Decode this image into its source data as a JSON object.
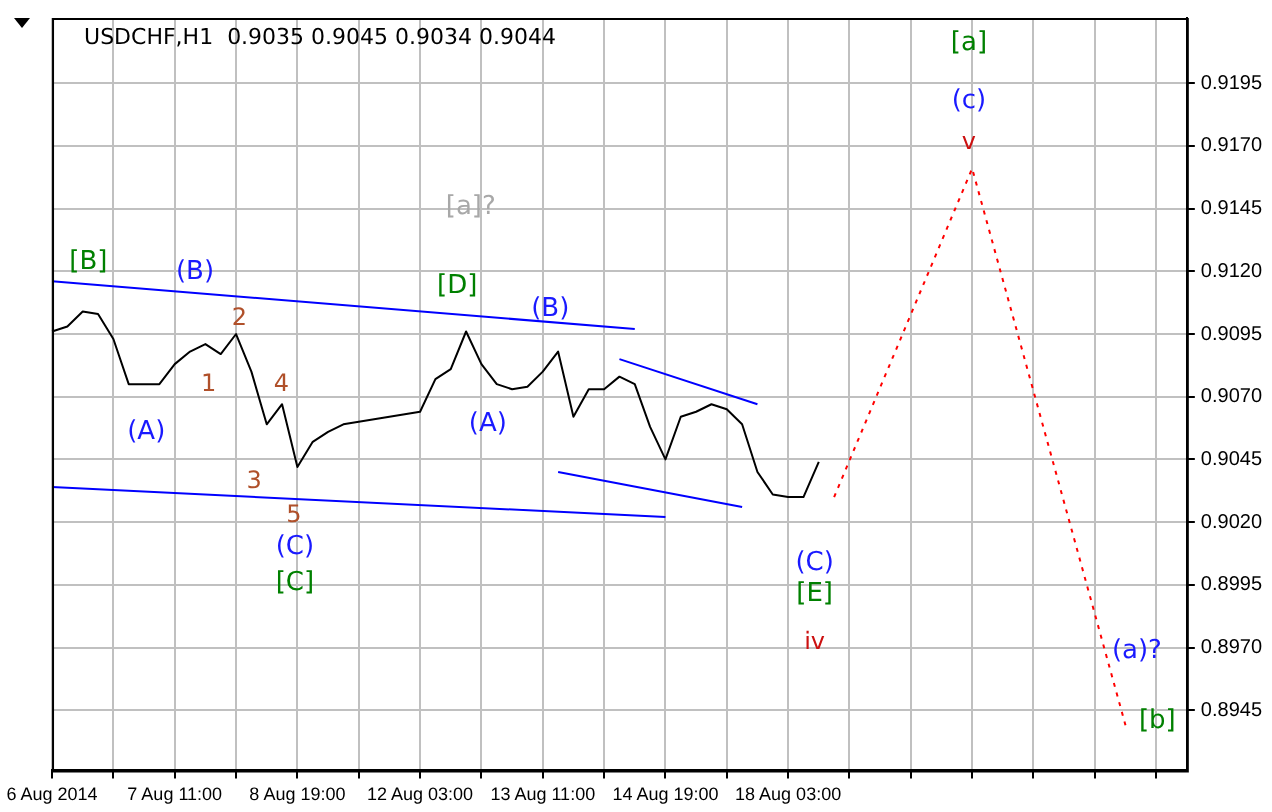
{
  "chart_data": {
    "type": "line",
    "title": "USDCHF,H1  0.9035 0.9045 0.9034 0.9044",
    "categories": [
      "6 Aug 2014",
      null,
      null,
      null,
      null,
      null,
      null,
      null,
      "7 Aug 11:00",
      null,
      null,
      null,
      null,
      null,
      null,
      null,
      "8 Aug 19:00",
      null,
      null,
      null,
      null,
      null,
      null,
      null,
      "12 Aug 03:00",
      null,
      null,
      null,
      null,
      null,
      null,
      null,
      "13 Aug 11:00",
      null,
      null,
      null,
      null,
      null,
      null,
      null,
      "14 Aug 19:00",
      null,
      null,
      null,
      null,
      null,
      null,
      null,
      "18 Aug 03:00",
      null,
      null,
      null,
      null,
      null,
      null,
      null,
      null,
      null,
      null,
      null,
      null,
      null,
      null,
      null,
      null,
      null,
      null,
      null,
      null,
      null,
      null,
      null,
      null,
      null,
      null
    ],
    "ylim": [
      0.8921,
      0.9221
    ],
    "yticks": [
      0.8945,
      {
        "value": 0.897,
        "label": "0.8970"
      },
      0.8995,
      {
        "value": 0.902,
        "label": "0.9020"
      },
      0.9045,
      {
        "value": 0.907,
        "label": "0.9070"
      },
      0.9095,
      {
        "value": 0.912,
        "label": "0.9120"
      },
      0.9145,
      {
        "value": 0.917,
        "label": "0.9170"
      },
      0.9195
    ],
    "grid": true,
    "marker": "none",
    "series": [
      {
        "color": "#000000",
        "line_style": "solid",
        "values": [
          0.9096,
          0.9098,
          0.9104,
          0.9103,
          0.9093,
          0.9075,
          0.9075,
          0.9075,
          0.9083,
          0.9088,
          0.9091,
          0.9087,
          0.9095,
          0.908,
          0.9059,
          0.9067,
          0.9042,
          0.9052,
          0.9056,
          0.9059,
          0.906,
          0.9061,
          0.9062,
          0.9063,
          0.9064,
          0.9077,
          0.9081,
          0.9096,
          0.9083,
          0.9075,
          0.9073,
          0.9074,
          0.908,
          0.9088,
          0.9062,
          0.9073,
          0.9073,
          0.9078,
          0.9075,
          0.9058,
          0.9045,
          0.9062,
          0.9064,
          0.9067,
          0.9065,
          0.9059,
          0.904,
          0.9031,
          0.903,
          0.903,
          0.9044,
          null,
          null,
          null,
          null,
          null,
          null,
          null,
          null,
          null,
          null,
          null,
          null,
          null,
          null,
          null,
          null,
          null,
          null,
          null,
          null,
          null,
          null,
          null,
          null
        ]
      },
      {
        "color": "#0000ff",
        "line_style": "solid",
        "values": [
          0.9116,
          null,
          null,
          null,
          null,
          null,
          null,
          null,
          null,
          null,
          null,
          null,
          null,
          null,
          null,
          null,
          null,
          null,
          null,
          null,
          null,
          null,
          null,
          null,
          null,
          null,
          null,
          null,
          null,
          null,
          null,
          null,
          null,
          null,
          null,
          null,
          null,
          null,
          0.9097,
          null,
          null,
          null,
          null,
          null,
          null,
          null,
          null,
          null,
          null,
          null,
          null,
          null,
          null,
          null,
          null,
          null,
          null,
          null,
          null,
          null,
          null,
          null,
          null,
          null,
          null,
          null,
          null,
          null,
          null,
          null,
          null,
          null,
          null,
          null,
          null
        ]
      },
      {
        "color": "#0000ff",
        "line_style": "solid",
        "values": [
          0.9034,
          null,
          null,
          null,
          null,
          null,
          null,
          null,
          null,
          null,
          null,
          null,
          null,
          null,
          null,
          null,
          null,
          null,
          null,
          null,
          null,
          null,
          null,
          null,
          null,
          null,
          null,
          null,
          null,
          null,
          null,
          null,
          null,
          null,
          null,
          null,
          null,
          null,
          null,
          null,
          0.9022,
          null,
          null,
          null,
          null,
          null,
          null,
          null,
          null,
          null,
          null,
          null,
          null,
          null,
          null,
          null,
          null,
          null,
          null,
          null,
          null,
          null,
          null,
          null,
          null,
          null,
          null,
          null,
          null,
          null,
          null,
          null,
          null,
          null,
          null
        ]
      },
      {
        "color": "#0000ff",
        "line_style": "solid",
        "values": [
          null,
          null,
          null,
          null,
          null,
          null,
          null,
          null,
          null,
          null,
          null,
          null,
          null,
          null,
          null,
          null,
          null,
          null,
          null,
          null,
          null,
          null,
          null,
          null,
          null,
          null,
          null,
          null,
          null,
          null,
          null,
          null,
          null,
          null,
          null,
          null,
          null,
          0.9085,
          null,
          null,
          null,
          null,
          null,
          null,
          null,
          null,
          0.9067,
          null,
          null,
          null,
          null,
          null,
          null,
          null,
          null,
          null,
          null,
          null,
          null,
          null,
          null,
          null,
          null,
          null,
          null,
          null,
          null,
          null,
          null,
          null,
          null,
          null,
          null,
          null,
          null
        ]
      },
      {
        "color": "#0000ff",
        "line_style": "solid",
        "values": [
          null,
          null,
          null,
          null,
          null,
          null,
          null,
          null,
          null,
          null,
          null,
          null,
          null,
          null,
          null,
          null,
          null,
          null,
          null,
          null,
          null,
          null,
          null,
          null,
          null,
          null,
          null,
          null,
          null,
          null,
          null,
          null,
          null,
          0.904,
          null,
          null,
          null,
          null,
          null,
          null,
          null,
          null,
          null,
          null,
          null,
          0.9026,
          null,
          null,
          null,
          null,
          null,
          null,
          null,
          null,
          null,
          null,
          null,
          null,
          null,
          null,
          null,
          null,
          null,
          null,
          null,
          null,
          null,
          null,
          null,
          null,
          null,
          null,
          null,
          null,
          null
        ]
      },
      {
        "color": "#ff0000",
        "line_style": "dotted",
        "values": [
          null,
          null,
          null,
          null,
          null,
          null,
          null,
          null,
          null,
          null,
          null,
          null,
          null,
          null,
          null,
          null,
          null,
          null,
          null,
          null,
          null,
          null,
          null,
          null,
          null,
          null,
          null,
          null,
          null,
          null,
          null,
          null,
          null,
          null,
          null,
          null,
          null,
          null,
          null,
          null,
          null,
          null,
          null,
          null,
          null,
          null,
          null,
          null,
          null,
          null,
          null,
          0.903,
          null,
          null,
          null,
          null,
          null,
          null,
          null,
          null,
          0.9161,
          null,
          null,
          null,
          null,
          null,
          null,
          null,
          null,
          null,
          0.8939,
          null,
          null,
          null,
          null
        ]
      }
    ],
    "annotations": [
      "[B]",
      "(B)",
      "2",
      "1",
      "4",
      "(A)",
      "3",
      "5",
      "(C)",
      "[C]",
      "[a]?",
      "[D]",
      "(B)",
      "(A)",
      "(C)",
      "[E]",
      "iv",
      "[a]",
      "(c)",
      "v",
      "(a)?",
      "[b]"
    ]
  }
}
